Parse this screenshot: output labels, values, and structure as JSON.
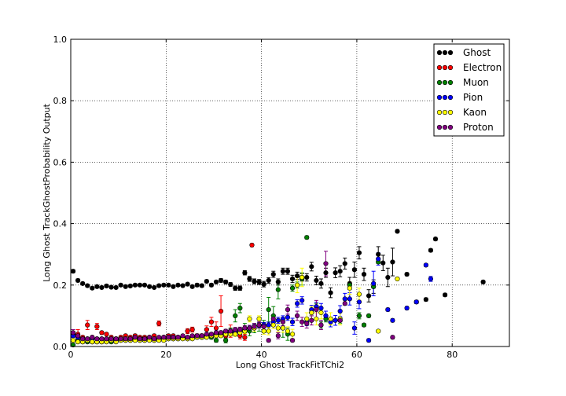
{
  "chart_data": {
    "type": "scatter",
    "xlabel": "Long Ghost TrackFitTChi2",
    "ylabel": "Long Ghost TrackGhostProbability Output",
    "xlim": [
      0,
      92
    ],
    "ylim": [
      0,
      1.0
    ],
    "xticks": [
      "0",
      "20",
      "40",
      "60",
      "80"
    ],
    "xtick_values": [
      0,
      20,
      40,
      60,
      80
    ],
    "yticks": [
      "0.0",
      "0.2",
      "0.4",
      "0.6",
      "0.8",
      "1.0"
    ],
    "ytick_values": [
      0,
      0.2,
      0.4,
      0.6,
      0.8,
      1.0
    ],
    "grid": true,
    "legend_position": "top-right",
    "series": [
      {
        "name": "Ghost",
        "color": "#000000",
        "x": [
          0.5,
          1.5,
          2.5,
          3.5,
          4.5,
          5.5,
          6.5,
          7.5,
          8.5,
          9.5,
          10.5,
          11.5,
          12.5,
          13.5,
          14.5,
          15.5,
          16.5,
          17.5,
          18.5,
          19.5,
          20.5,
          21.5,
          22.5,
          23.5,
          24.5,
          25.5,
          26.5,
          27.5,
          28.5,
          29.5,
          30.5,
          31.5,
          32.5,
          33.5,
          34.5,
          35.5,
          36.5,
          37.5,
          38.5,
          39.5,
          40.5,
          41.5,
          42.5,
          43.5,
          44.5,
          45.5,
          46.5,
          47.5,
          48.5,
          49.5,
          50.5,
          51.5,
          52.5,
          53.5,
          54.5,
          55.5,
          56.5,
          57.5,
          58.5,
          59.5,
          60.5,
          61.5,
          62.5,
          63.5,
          64.5,
          65.5,
          66.5,
          67.5,
          68.5,
          70.5,
          72.5,
          74.5,
          75.5,
          76.5,
          78.5,
          86.5
        ],
        "y": [
          0.245,
          0.215,
          0.205,
          0.198,
          0.19,
          0.195,
          0.192,
          0.197,
          0.193,
          0.192,
          0.2,
          0.195,
          0.197,
          0.2,
          0.2,
          0.2,
          0.195,
          0.192,
          0.198,
          0.2,
          0.2,
          0.195,
          0.2,
          0.198,
          0.203,
          0.195,
          0.2,
          0.198,
          0.212,
          0.2,
          0.21,
          0.215,
          0.21,
          0.202,
          0.19,
          0.19,
          0.24,
          0.22,
          0.212,
          0.21,
          0.203,
          0.215,
          0.235,
          0.21,
          0.245,
          0.245,
          0.22,
          0.23,
          0.225,
          0.225,
          0.26,
          0.215,
          0.205,
          0.24,
          0.175,
          0.24,
          0.245,
          0.27,
          0.205,
          0.25,
          0.305,
          0.235,
          0.165,
          0.195,
          0.3,
          0.272,
          0.225,
          0.275,
          0.375,
          0.235,
          0.145,
          0.153,
          0.313,
          0.35,
          0.168,
          0.21
        ],
        "err": [
          0.005,
          0.005,
          0.004,
          0.004,
          0.004,
          0.004,
          0.004,
          0.004,
          0.004,
          0.004,
          0.004,
          0.004,
          0.004,
          0.004,
          0.004,
          0.004,
          0.004,
          0.004,
          0.004,
          0.004,
          0.004,
          0.004,
          0.004,
          0.004,
          0.004,
          0.004,
          0.005,
          0.005,
          0.005,
          0.005,
          0.005,
          0.006,
          0.006,
          0.006,
          0.007,
          0.007,
          0.007,
          0.008,
          0.008,
          0.008,
          0.009,
          0.009,
          0.01,
          0.01,
          0.01,
          0.01,
          0.012,
          0.012,
          0.012,
          0.012,
          0.014,
          0.014,
          0.015,
          0.015,
          0.016,
          0.016,
          0.018,
          0.018,
          0.02,
          0.025,
          0.02,
          0.02,
          0.02,
          0.022,
          0.025,
          0.025,
          0.03,
          0.045,
          0.005,
          0.005,
          0.005,
          0.005,
          0.005,
          0.005,
          0.005,
          0.005
        ]
      },
      {
        "name": "Electron",
        "color": "#ff0000",
        "x": [
          0.5,
          1.5,
          2.5,
          3.5,
          4.5,
          5.5,
          6.5,
          7.5,
          8.5,
          9.5,
          10.5,
          11.5,
          12.5,
          13.5,
          14.5,
          15.5,
          16.5,
          17.5,
          18.5,
          19.5,
          20.5,
          21.5,
          22.5,
          23.5,
          24.5,
          25.5,
          26.5,
          27.5,
          28.5,
          29.5,
          30.5,
          31.5,
          32.5,
          33.5,
          34.5,
          35.5,
          36.5,
          38.0
        ],
        "y": [
          0.04,
          0.04,
          0.03,
          0.07,
          0.03,
          0.065,
          0.045,
          0.04,
          0.03,
          0.025,
          0.03,
          0.035,
          0.03,
          0.035,
          0.03,
          0.03,
          0.03,
          0.035,
          0.075,
          0.03,
          0.035,
          0.035,
          0.03,
          0.03,
          0.05,
          0.055,
          0.035,
          0.035,
          0.055,
          0.08,
          0.06,
          0.115,
          0.035,
          0.05,
          0.045,
          0.035,
          0.03,
          0.33
        ],
        "err": [
          0.01,
          0.015,
          0.005,
          0.015,
          0.005,
          0.01,
          0.005,
          0.005,
          0.005,
          0.005,
          0.005,
          0.005,
          0.005,
          0.005,
          0.005,
          0.005,
          0.005,
          0.005,
          0.008,
          0.005,
          0.005,
          0.005,
          0.005,
          0.005,
          0.008,
          0.008,
          0.006,
          0.006,
          0.012,
          0.015,
          0.02,
          0.05,
          0.01,
          0.02,
          0.01,
          0.01,
          0.01,
          0.005
        ]
      },
      {
        "name": "Muon",
        "color": "#008000",
        "x": [
          0.5,
          1.5,
          2.5,
          3.5,
          4.5,
          5.5,
          6.5,
          7.5,
          8.5,
          9.5,
          10.5,
          11.5,
          12.5,
          13.5,
          14.5,
          15.5,
          16.5,
          17.5,
          18.5,
          19.5,
          20.5,
          21.5,
          22.5,
          23.5,
          24.5,
          25.5,
          26.5,
          27.5,
          28.5,
          29.5,
          30.5,
          31.5,
          32.5,
          33.5,
          34.5,
          35.5,
          36.5,
          37.5,
          38.5,
          39.5,
          40.5,
          41.5,
          42.5,
          43.5,
          44.5,
          45.5,
          46.5,
          47.5,
          48.5,
          49.5,
          50.5,
          51.5,
          52.5,
          53.5,
          54.5,
          56.5,
          58.5,
          60.5,
          61.5,
          62.5,
          63.5,
          64.5
        ],
        "y": [
          0.005,
          0.02,
          0.015,
          0.015,
          0.015,
          0.015,
          0.015,
          0.02,
          0.015,
          0.02,
          0.02,
          0.02,
          0.02,
          0.025,
          0.02,
          0.02,
          0.025,
          0.02,
          0.025,
          0.025,
          0.025,
          0.025,
          0.025,
          0.03,
          0.025,
          0.03,
          0.03,
          0.03,
          0.035,
          0.03,
          0.02,
          0.04,
          0.02,
          0.05,
          0.1,
          0.125,
          0.06,
          0.05,
          0.06,
          0.07,
          0.065,
          0.12,
          0.1,
          0.185,
          0.06,
          0.04,
          0.19,
          0.2,
          0.22,
          0.355,
          0.11,
          0.13,
          0.07,
          0.09,
          0.08,
          0.085,
          0.2,
          0.1,
          0.07,
          0.1,
          0.195,
          0.275
        ],
        "err": [
          0.005,
          0.004,
          0.003,
          0.003,
          0.003,
          0.003,
          0.003,
          0.003,
          0.003,
          0.003,
          0.003,
          0.003,
          0.003,
          0.003,
          0.003,
          0.003,
          0.003,
          0.003,
          0.003,
          0.003,
          0.004,
          0.004,
          0.004,
          0.004,
          0.004,
          0.005,
          0.005,
          0.005,
          0.006,
          0.006,
          0.006,
          0.008,
          0.008,
          0.01,
          0.02,
          0.015,
          0.015,
          0.015,
          0.015,
          0.02,
          0.02,
          0.04,
          0.03,
          0.03,
          0.03,
          0.02,
          0.01,
          0.01,
          0.02,
          0.005,
          0.01,
          0.01,
          0.01,
          0.01,
          0.01,
          0.01,
          0.01,
          0.01,
          0.005,
          0.005,
          0.005,
          0.005
        ]
      },
      {
        "name": "Pion",
        "color": "#0000ff",
        "x": [
          0.5,
          1.5,
          2.5,
          3.5,
          4.5,
          5.5,
          6.5,
          7.5,
          8.5,
          9.5,
          10.5,
          11.5,
          12.5,
          13.5,
          14.5,
          15.5,
          16.5,
          17.5,
          18.5,
          19.5,
          20.5,
          21.5,
          22.5,
          23.5,
          24.5,
          25.5,
          26.5,
          27.5,
          28.5,
          29.5,
          30.5,
          31.5,
          32.5,
          33.5,
          34.5,
          35.5,
          36.5,
          37.5,
          38.5,
          39.5,
          40.5,
          41.5,
          42.5,
          43.5,
          44.5,
          45.5,
          46.5,
          47.5,
          48.5,
          49.5,
          50.5,
          51.5,
          52.5,
          53.5,
          54.5,
          55.5,
          56.5,
          57.5,
          58.5,
          59.5,
          60.5,
          62.5,
          63.5,
          64.5,
          66.5,
          67.5,
          70.5,
          72.5,
          74.5,
          75.5
        ],
        "y": [
          0.035,
          0.03,
          0.025,
          0.025,
          0.025,
          0.025,
          0.025,
          0.025,
          0.025,
          0.025,
          0.025,
          0.025,
          0.025,
          0.025,
          0.025,
          0.025,
          0.025,
          0.025,
          0.025,
          0.03,
          0.03,
          0.03,
          0.03,
          0.03,
          0.03,
          0.03,
          0.035,
          0.035,
          0.035,
          0.04,
          0.04,
          0.045,
          0.045,
          0.045,
          0.05,
          0.05,
          0.055,
          0.06,
          0.065,
          0.07,
          0.07,
          0.07,
          0.08,
          0.085,
          0.09,
          0.095,
          0.08,
          0.14,
          0.15,
          0.08,
          0.12,
          0.13,
          0.125,
          0.1,
          0.08,
          0.085,
          0.115,
          0.155,
          0.155,
          0.06,
          0.145,
          0.02,
          0.205,
          0.285,
          0.12,
          0.085,
          0.125,
          0.145,
          0.265,
          0.22
        ],
        "err": [
          0.005,
          0.003,
          0.003,
          0.003,
          0.003,
          0.003,
          0.003,
          0.003,
          0.003,
          0.003,
          0.003,
          0.003,
          0.003,
          0.003,
          0.003,
          0.003,
          0.003,
          0.003,
          0.003,
          0.003,
          0.003,
          0.003,
          0.003,
          0.003,
          0.003,
          0.003,
          0.004,
          0.004,
          0.004,
          0.004,
          0.004,
          0.005,
          0.005,
          0.005,
          0.005,
          0.006,
          0.006,
          0.006,
          0.007,
          0.008,
          0.008,
          0.009,
          0.01,
          0.01,
          0.01,
          0.01,
          0.012,
          0.012,
          0.012,
          0.012,
          0.014,
          0.014,
          0.015,
          0.015,
          0.016,
          0.016,
          0.018,
          0.018,
          0.02,
          0.02,
          0.022,
          0.005,
          0.04,
          0.02,
          0.005,
          0.005,
          0.005,
          0.005,
          0.005,
          0.008
        ]
      },
      {
        "name": "Kaon",
        "color": "#ffff00",
        "x": [
          0.5,
          1.5,
          2.5,
          3.5,
          4.5,
          5.5,
          6.5,
          7.5,
          8.5,
          9.5,
          10.5,
          11.5,
          12.5,
          13.5,
          14.5,
          15.5,
          16.5,
          17.5,
          18.5,
          19.5,
          20.5,
          21.5,
          22.5,
          23.5,
          24.5,
          25.5,
          26.5,
          27.5,
          28.5,
          29.5,
          30.5,
          31.5,
          32.5,
          33.5,
          34.5,
          35.5,
          36.5,
          37.5,
          38.5,
          39.5,
          40.5,
          41.5,
          42.5,
          43.5,
          44.5,
          45.5,
          46.5,
          47.5,
          48.5,
          49.5,
          50.5,
          51.5,
          52.5,
          54.5,
          56.5,
          58.5,
          60.5,
          64.5,
          68.5
        ],
        "y": [
          0.02,
          0.015,
          0.015,
          0.02,
          0.015,
          0.015,
          0.015,
          0.015,
          0.02,
          0.015,
          0.02,
          0.02,
          0.02,
          0.02,
          0.02,
          0.02,
          0.02,
          0.02,
          0.02,
          0.02,
          0.025,
          0.025,
          0.025,
          0.025,
          0.025,
          0.025,
          0.03,
          0.03,
          0.03,
          0.035,
          0.035,
          0.035,
          0.04,
          0.04,
          0.04,
          0.045,
          0.05,
          0.09,
          0.06,
          0.09,
          0.05,
          0.05,
          0.07,
          0.06,
          0.06,
          0.05,
          0.04,
          0.2,
          0.225,
          0.09,
          0.11,
          0.09,
          0.11,
          0.09,
          0.09,
          0.19,
          0.17,
          0.05,
          0.22
        ],
        "err": [
          0.004,
          0.003,
          0.003,
          0.003,
          0.003,
          0.003,
          0.003,
          0.003,
          0.003,
          0.003,
          0.003,
          0.003,
          0.003,
          0.003,
          0.003,
          0.003,
          0.003,
          0.003,
          0.003,
          0.003,
          0.003,
          0.003,
          0.004,
          0.004,
          0.004,
          0.004,
          0.004,
          0.004,
          0.005,
          0.005,
          0.005,
          0.006,
          0.006,
          0.006,
          0.007,
          0.008,
          0.008,
          0.01,
          0.01,
          0.01,
          0.01,
          0.012,
          0.012,
          0.012,
          0.014,
          0.014,
          0.016,
          0.025,
          0.03,
          0.02,
          0.02,
          0.02,
          0.02,
          0.02,
          0.02,
          0.02,
          0.02,
          0.005,
          0.005
        ]
      },
      {
        "name": "Proton",
        "color": "#800080",
        "x": [
          0.5,
          1.5,
          2.5,
          3.5,
          4.5,
          5.5,
          6.5,
          7.5,
          8.5,
          9.5,
          10.5,
          11.5,
          12.5,
          13.5,
          14.5,
          15.5,
          16.5,
          17.5,
          18.5,
          19.5,
          20.5,
          21.5,
          22.5,
          23.5,
          24.5,
          25.5,
          26.5,
          27.5,
          28.5,
          29.5,
          30.5,
          31.5,
          32.5,
          33.5,
          34.5,
          35.5,
          36.5,
          37.5,
          38.5,
          39.5,
          40.5,
          41.5,
          42.5,
          43.5,
          44.5,
          45.5,
          46.5,
          47.5,
          48.5,
          49.5,
          50.5,
          51.5,
          52.5,
          53.5,
          56.5,
          57.5,
          67.5
        ],
        "y": [
          0.045,
          0.035,
          0.025,
          0.025,
          0.03,
          0.025,
          0.025,
          0.025,
          0.025,
          0.025,
          0.025,
          0.025,
          0.025,
          0.03,
          0.025,
          0.025,
          0.03,
          0.025,
          0.03,
          0.03,
          0.03,
          0.03,
          0.03,
          0.035,
          0.03,
          0.035,
          0.035,
          0.035,
          0.04,
          0.04,
          0.045,
          0.045,
          0.05,
          0.05,
          0.055,
          0.055,
          0.06,
          0.06,
          0.065,
          0.07,
          0.065,
          0.02,
          0.09,
          0.035,
          0.08,
          0.12,
          0.02,
          0.1,
          0.08,
          0.075,
          0.085,
          0.12,
          0.07,
          0.27,
          0.085,
          0.14,
          0.03
        ],
        "err": [
          0.01,
          0.004,
          0.003,
          0.003,
          0.003,
          0.003,
          0.003,
          0.003,
          0.003,
          0.003,
          0.003,
          0.003,
          0.003,
          0.003,
          0.003,
          0.003,
          0.003,
          0.003,
          0.003,
          0.003,
          0.004,
          0.004,
          0.004,
          0.004,
          0.004,
          0.004,
          0.005,
          0.005,
          0.005,
          0.005,
          0.006,
          0.006,
          0.006,
          0.007,
          0.007,
          0.008,
          0.008,
          0.009,
          0.01,
          0.01,
          0.01,
          0.005,
          0.012,
          0.01,
          0.012,
          0.015,
          0.005,
          0.015,
          0.015,
          0.015,
          0.015,
          0.03,
          0.015,
          0.04,
          0.005,
          0.005,
          0.005
        ]
      }
    ]
  }
}
